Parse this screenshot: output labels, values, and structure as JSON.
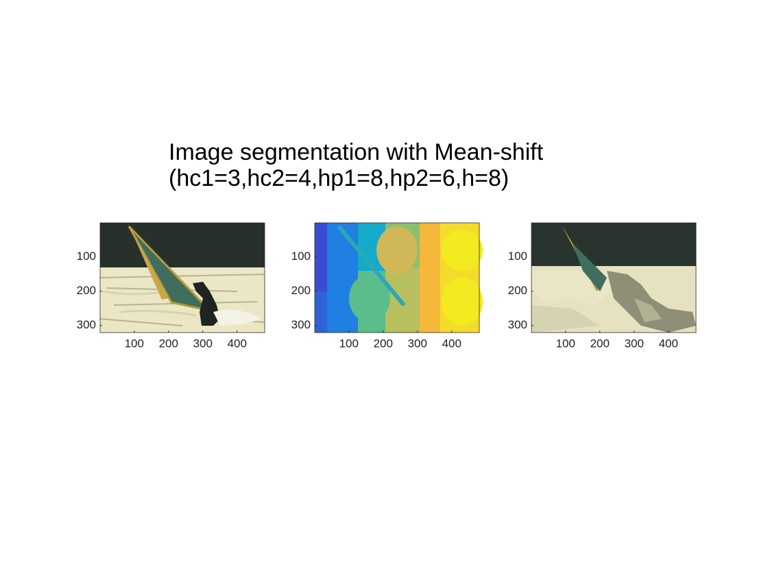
{
  "title_lines": [
    "Image segmentation with Mean-shift",
    "(hc1=3,hc2=4,hp1=8,hp2=6,h=8)"
  ],
  "chart_data": [
    {
      "type": "image",
      "xlim": [
        0.5,
        480.5
      ],
      "ylim": [
        0.5,
        320.5
      ],
      "xticks": [
        100,
        200,
        300,
        400
      ],
      "yticks": [
        100,
        200,
        300
      ],
      "y_reversed": true
    },
    {
      "type": "image",
      "xlim": [
        0.5,
        480.5
      ],
      "ylim": [
        0.5,
        320.5
      ],
      "xticks": [
        100,
        200,
        300,
        400
      ],
      "yticks": [
        100,
        200,
        300
      ],
      "y_reversed": true
    },
    {
      "type": "image",
      "xlim": [
        0.5,
        480.5
      ],
      "ylim": [
        0.5,
        320.5
      ],
      "xticks": [
        100,
        200,
        300,
        400
      ],
      "yticks": [
        100,
        200,
        300
      ],
      "y_reversed": true
    }
  ]
}
